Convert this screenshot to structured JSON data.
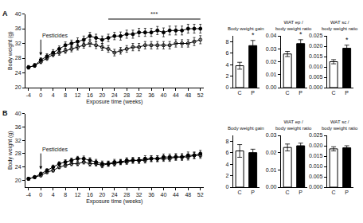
{
  "chart_data": [
    {
      "type": "line",
      "panel": "A",
      "x_label": "Exposure time (weeks)",
      "y_label": "Body weight (g)",
      "x": [
        -4,
        -2,
        0,
        2,
        4,
        6,
        8,
        10,
        12,
        14,
        16,
        18,
        20,
        22,
        24,
        26,
        28,
        30,
        32,
        34,
        36,
        38,
        40,
        42,
        44,
        46,
        48,
        50,
        52
      ],
      "xlim": [
        -5,
        53
      ],
      "xticks": [
        -4,
        0,
        4,
        8,
        12,
        16,
        20,
        24,
        28,
        32,
        36,
        40,
        44,
        48,
        52
      ],
      "ylim": [
        20,
        40
      ],
      "yticks": [
        20,
        24,
        28,
        32,
        36,
        40
      ],
      "series": [
        {
          "color": "#000000",
          "marker": "circle-open",
          "values": [
            25.5,
            26,
            27,
            28,
            29,
            29.5,
            30,
            30.5,
            31,
            31.5,
            32,
            31.5,
            31,
            30.5,
            29.5,
            30,
            30.5,
            31,
            31,
            31.5,
            31.5,
            31.5,
            31.5,
            31.5,
            32,
            32,
            32,
            32.5,
            33
          ],
          "errors": [
            0.4,
            0.5,
            0.5,
            0.6,
            0.6,
            0.7,
            0.7,
            0.8,
            0.8,
            0.8,
            0.9,
            0.9,
            0.9,
            0.9,
            0.9,
            0.9,
            0.9,
            1,
            1,
            1,
            1,
            1,
            1,
            1,
            1,
            1,
            1,
            1.1,
            1.1
          ]
        },
        {
          "color": "#000000",
          "marker": "circle",
          "values": [
            25.5,
            26,
            27.5,
            28.5,
            29.5,
            30.5,
            31.5,
            32,
            32.5,
            33,
            34,
            33.5,
            33,
            33.5,
            34,
            34,
            34.5,
            34.5,
            35,
            35,
            35,
            35.5,
            35,
            35.5,
            35.5,
            35.5,
            36,
            36,
            36
          ],
          "errors": [
            0.5,
            0.5,
            0.6,
            0.7,
            0.8,
            0.8,
            0.9,
            0.9,
            1,
            1,
            1,
            1,
            1,
            1,
            1,
            1.1,
            1.1,
            1.1,
            1.1,
            1.1,
            1.1,
            1.1,
            1.2,
            1.2,
            1.2,
            1.2,
            1.2,
            1.2,
            1.2
          ]
        }
      ],
      "annotations": [
        {
          "text": "Pesticides",
          "x": 0
        },
        {
          "text": "***",
          "x_start": 22,
          "x_end": 52
        }
      ]
    },
    {
      "type": "bar",
      "title": "Body weight gain",
      "categories": [
        "C",
        "P"
      ],
      "values": [
        3.8,
        7.3
      ],
      "errors": [
        0.6,
        0.9
      ],
      "colors": [
        "#ffffff",
        "#000000"
      ],
      "ylim": [
        0,
        9
      ],
      "yticks": [
        0,
        2,
        4,
        6,
        8
      ],
      "annotations": [
        {
          "text": "*",
          "x": 1
        }
      ]
    },
    {
      "type": "bar",
      "title": "WAT ep / body weight ratio",
      "categories": [
        "C",
        "P"
      ],
      "values": [
        0.026,
        0.034
      ],
      "errors": [
        0.002,
        0.003
      ],
      "colors": [
        "#ffffff",
        "#000000"
      ],
      "ylim": [
        0,
        0.04
      ],
      "yticks": [
        {
          "value": 0,
          "label": "0.00"
        },
        0.01,
        0.02,
        0.03,
        0.04
      ],
      "annotations": [
        {
          "text": "*",
          "x": 1
        }
      ]
    },
    {
      "type": "bar",
      "title": "WAT sc / body weight ratio",
      "categories": [
        "C",
        "P"
      ],
      "values": [
        0.0125,
        0.019
      ],
      "errors": [
        0.001,
        0.0015
      ],
      "colors": [
        "#ffffff",
        "#000000"
      ],
      "ylim": [
        0,
        0.025
      ],
      "yticks": [
        {
          "value": 0,
          "label": "0.000"
        },
        0.005,
        {
          "value": 0.01,
          "label": "0.010"
        },
        0.015,
        {
          "value": 0.02,
          "label": "0.020"
        },
        0.025
      ],
      "annotations": [
        {
          "text": "*",
          "x": 1
        }
      ]
    },
    {
      "type": "line",
      "panel": "B",
      "x_label": "Exposure time (weeks)",
      "y_label": "Body weight (g)",
      "x": [
        -4,
        -2,
        0,
        2,
        4,
        6,
        8,
        10,
        12,
        14,
        16,
        18,
        20,
        22,
        24,
        26,
        28,
        30,
        32,
        34,
        36,
        38,
        40,
        42,
        44,
        46,
        48,
        50,
        52
      ],
      "xlim": [
        -5,
        53
      ],
      "xticks": [
        -4,
        0,
        4,
        8,
        12,
        16,
        20,
        24,
        28,
        32,
        36,
        40,
        44,
        48,
        52
      ],
      "ylim": [
        18,
        40
      ],
      "yticks": [
        20,
        24,
        28,
        32,
        36,
        40
      ],
      "series": [
        {
          "color": "#000000",
          "marker": "circle-open",
          "values": [
            20.5,
            21,
            21.5,
            22.5,
            23,
            24,
            24.5,
            25,
            25,
            25.5,
            25,
            25,
            24.5,
            25,
            25,
            25.5,
            25.5,
            26,
            26,
            26,
            26.5,
            26.5,
            26.5,
            26.5,
            27,
            27,
            27,
            27.5,
            27.5
          ],
          "errors": [
            0.4,
            0.4,
            0.4,
            0.5,
            0.5,
            0.5,
            0.6,
            0.6,
            0.6,
            0.6,
            0.7,
            0.7,
            0.7,
            0.7,
            0.7,
            0.7,
            0.7,
            0.7,
            0.8,
            0.8,
            0.8,
            0.8,
            0.8,
            0.8,
            0.8,
            0.8,
            0.9,
            0.9,
            0.9
          ]
        },
        {
          "color": "#000000",
          "marker": "circle",
          "values": [
            20.5,
            21,
            22,
            23,
            24,
            25,
            25.5,
            26,
            26.5,
            26.5,
            26,
            25.5,
            25,
            25,
            25.5,
            25.5,
            26,
            26,
            26,
            26.5,
            26.5,
            26.5,
            27,
            27,
            27,
            27,
            27.5,
            27.5,
            28
          ],
          "errors": [
            0.4,
            0.4,
            0.5,
            0.5,
            0.6,
            0.6,
            0.7,
            0.7,
            0.7,
            0.8,
            0.8,
            0.8,
            0.8,
            0.8,
            0.8,
            0.8,
            0.8,
            0.9,
            0.9,
            0.9,
            0.9,
            0.9,
            0.9,
            0.9,
            1,
            1,
            1,
            1,
            1
          ]
        }
      ],
      "annotations": [
        {
          "text": "Pesticides",
          "x": 0
        }
      ]
    },
    {
      "type": "bar",
      "title": "Body weight gain",
      "categories": [
        "C",
        "P"
      ],
      "values": [
        6.3,
        6.0
      ],
      "errors": [
        1.1,
        0.6
      ],
      "colors": [
        "#ffffff",
        "#000000"
      ],
      "ylim": [
        0,
        9
      ],
      "yticks": [
        0,
        2,
        4,
        6,
        8
      ]
    },
    {
      "type": "bar",
      "title": "WAT ep / body weight ratio",
      "categories": [
        "C",
        "P"
      ],
      "values": [
        0.023,
        0.024
      ],
      "errors": [
        0.002,
        0.0015
      ],
      "colors": [
        "#ffffff",
        "#000000"
      ],
      "ylim": [
        0,
        0.03
      ],
      "yticks": [
        {
          "value": 0,
          "label": "0.00"
        },
        0.01,
        0.02,
        0.03
      ]
    },
    {
      "type": "bar",
      "title": "WAT sc / body weight ratio",
      "categories": [
        "C",
        "P"
      ],
      "values": [
        0.0185,
        0.019
      ],
      "errors": [
        0.001,
        0.001
      ],
      "colors": [
        "#ffffff",
        "#000000"
      ],
      "ylim": [
        0,
        0.025
      ],
      "yticks": [
        {
          "value": 0,
          "label": "0.000"
        },
        0.005,
        {
          "value": 0.01,
          "label": "0.010"
        },
        0.015,
        {
          "value": 0.02,
          "label": "0.020"
        },
        0.025
      ]
    }
  ]
}
